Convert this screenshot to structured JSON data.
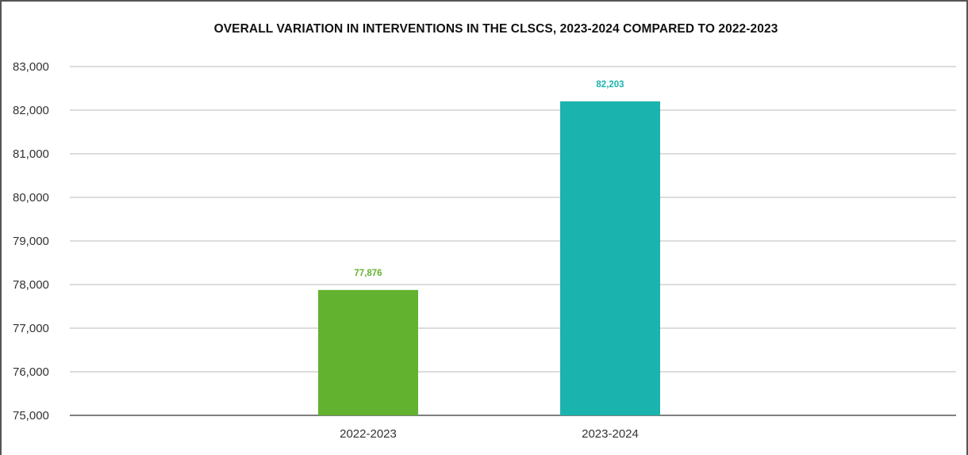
{
  "chart_data": {
    "type": "bar",
    "title": "OVERALL VARIATION IN INTERVENTIONS IN THE CLSCS, 2023-2024 COMPARED TO 2022-2023",
    "xlabel": "",
    "ylabel": "",
    "categories": [
      "2022-2023",
      "2023-2024"
    ],
    "values": [
      77876,
      82203
    ],
    "data_labels": [
      "77,876",
      "82,203"
    ],
    "bar_colors": [
      "#62b22f",
      "#1ab3ad"
    ],
    "ylim": [
      75000,
      83000
    ],
    "yticks": [
      75000,
      76000,
      77000,
      78000,
      79000,
      80000,
      81000,
      82000,
      83000
    ],
    "ytick_labels": [
      "75,000",
      "76,000",
      "77,000",
      "78,000",
      "79,000",
      "80,000",
      "81,000",
      "82,000",
      "83,000"
    ],
    "grid": true,
    "legend": "none"
  },
  "colors": {
    "gridline": "#b8b8b8",
    "axis": "#555555"
  }
}
